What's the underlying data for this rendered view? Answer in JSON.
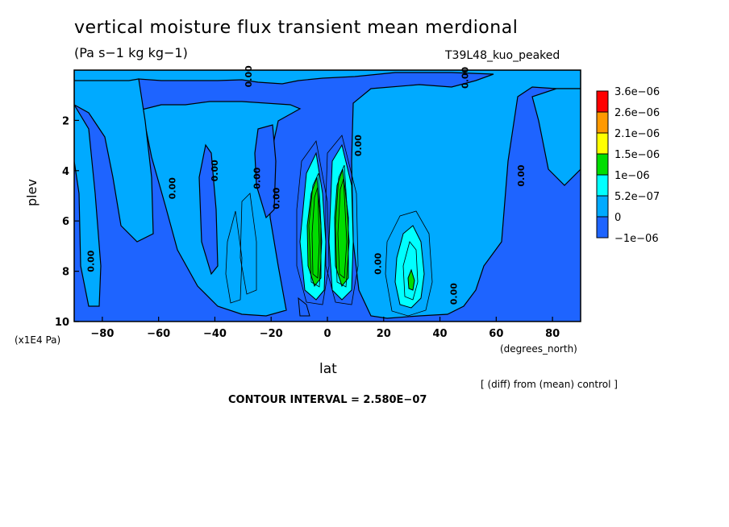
{
  "header": {
    "title": "vertical moisture flux transient mean merdional",
    "units": "(Pa s−1 kg kg−1)",
    "run": "T39L48_kuo_peaked"
  },
  "footer": {
    "diff_note": "[ (diff) from (mean) control ]",
    "contour_interval": "CONTOUR INTERVAL = 2.580E−07"
  },
  "chart_data": {
    "type": "heatmap",
    "xlabel": "lat",
    "x_units": "(degrees_north)",
    "ylabel": "plev",
    "y_units": "(x1E4 Pa)",
    "xlim": [
      -90,
      90
    ],
    "ylim": [
      10,
      0
    ],
    "x_ticks": [
      -80,
      -60,
      -40,
      -20,
      0,
      20,
      40,
      60,
      80
    ],
    "y_ticks": [
      2,
      4,
      6,
      8,
      10
    ],
    "contour_labels": [
      {
        "text": "0.00",
        "lat": -83,
        "plev": 7.6
      },
      {
        "text": "0.00",
        "lat": -54,
        "plev": 4.7
      },
      {
        "text": "0.00",
        "lat": -39,
        "plev": 4.0
      },
      {
        "text": "0.00",
        "lat": -24,
        "plev": 4.3
      },
      {
        "text": "0.00",
        "lat": -17,
        "plev": 5.1
      },
      {
        "text": "0.00",
        "lat": 12,
        "plev": 3.0
      },
      {
        "text": "0.00",
        "lat": 19,
        "plev": 7.7
      },
      {
        "text": "0.00",
        "lat": 46,
        "plev": 8.9
      },
      {
        "text": "0.00",
        "lat": 70,
        "plev": 4.2
      },
      {
        "text": "0.00",
        "lat": -27,
        "plev": 0.25
      },
      {
        "text": "0.00",
        "lat": 50,
        "plev": 0.3
      }
    ],
    "legend": {
      "levels": [
        "3.6e−06",
        "2.6e−06",
        "2.1e−06",
        "1.5e−06",
        "1e−06",
        "5.2e−07",
        "0",
        "−1e−06"
      ],
      "colors": [
        "#ff0000",
        "#ff9900",
        "#ffff00",
        "#00dd00",
        "#00ffff",
        "#00aaff",
        "#1e64ff"
      ]
    },
    "colors": {
      "positive": "#00aaff",
      "negative": "#1e64ff",
      "strong_positive": "#00ffff",
      "peak": "#00dd00"
    }
  }
}
